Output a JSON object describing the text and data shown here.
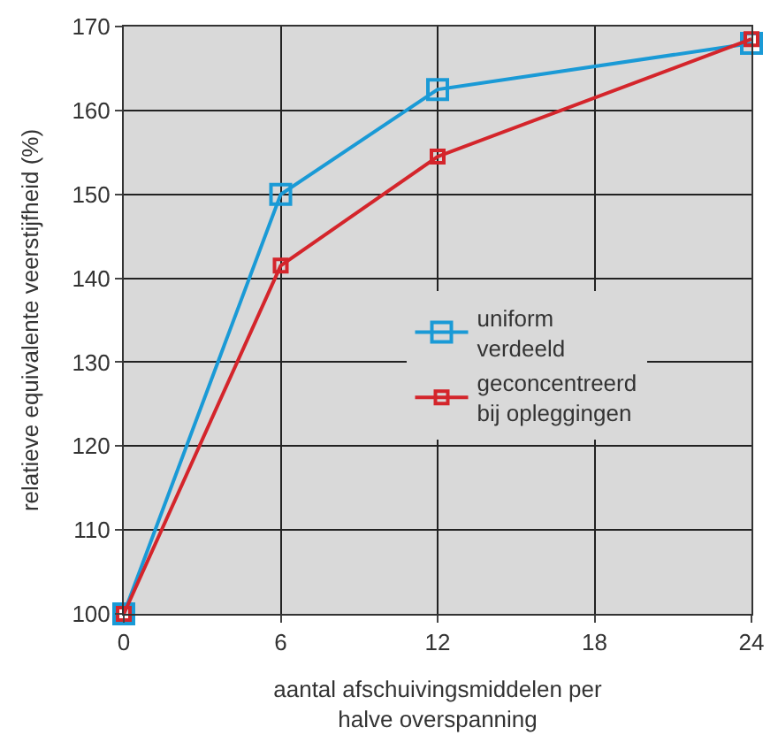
{
  "chart_data": {
    "type": "line",
    "xlabel": "aantal afschuivingsmiddelen per\nhalve overspanning",
    "ylabel": "relatieve equivalente veerstijfheid (%)",
    "x": [
      0,
      6,
      12,
      24
    ],
    "series": [
      {
        "name": "uniform\nverdeeld",
        "color": "#1a9ad6",
        "values": [
          100,
          150,
          162.5,
          168
        ]
      },
      {
        "name": "geconcentreerd\nbij opleggingen",
        "color": "#d4252b",
        "values": [
          100,
          141.5,
          154.5,
          168.5
        ]
      }
    ],
    "xlim": [
      0,
      24
    ],
    "xticks": [
      0,
      6,
      12,
      18,
      24
    ],
    "ylim": [
      100,
      170
    ],
    "yticks": [
      100,
      110,
      120,
      130,
      140,
      150,
      160,
      170
    ],
    "grid": true,
    "legend": "center",
    "marker": "square",
    "line_style": "solid"
  }
}
